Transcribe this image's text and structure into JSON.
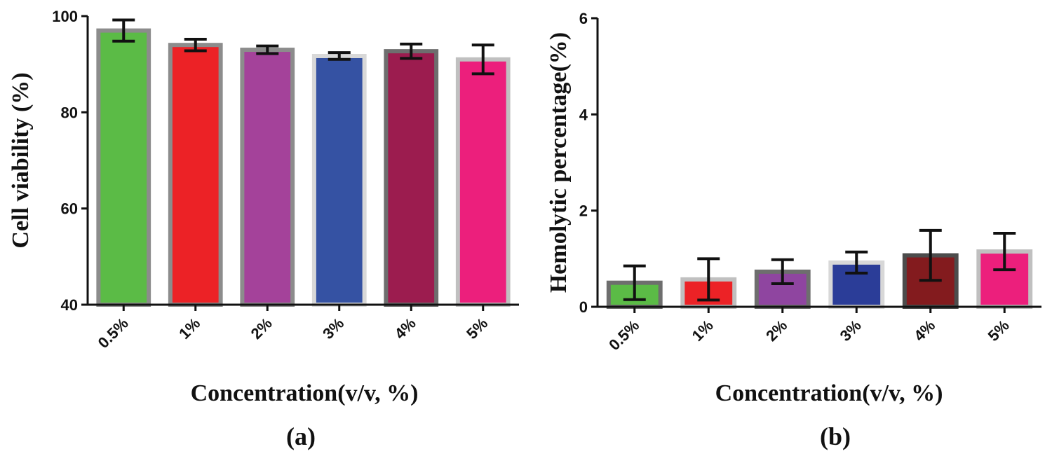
{
  "chart_data": [
    {
      "panel": "(a)",
      "type": "bar",
      "categories": [
        "0.5%",
        "1%",
        "2%",
        "3%",
        "4%",
        "5%"
      ],
      "values": [
        97,
        94,
        93,
        91.7,
        92.7,
        91
      ],
      "errors": [
        2.2,
        1.2,
        0.8,
        0.7,
        1.5,
        3
      ],
      "colors": [
        "#5bbb46",
        "#ec2226",
        "#a4429a",
        "#3552a3",
        "#9c1c4f",
        "#ec1f7c"
      ],
      "edge_colors": [
        "#8c8c8c",
        "#8c8c8c",
        "#8c8c8c",
        "#d8d8d8",
        "#6e6e6e",
        "#c0c0c0"
      ],
      "title": "",
      "xlabel": "Concentration(v/v, %)",
      "ylabel": "Cell viability (%)",
      "ylim": [
        40,
        100
      ],
      "yticks": [
        40,
        60,
        80,
        100
      ],
      "grid": false
    },
    {
      "panel": "(b)",
      "type": "bar",
      "categories": [
        "0.5%",
        "1%",
        "2%",
        "3%",
        "4%",
        "5%"
      ],
      "values": [
        0.5,
        0.57,
        0.73,
        0.92,
        1.07,
        1.15
      ],
      "errors": [
        0.35,
        0.43,
        0.25,
        0.22,
        0.52,
        0.38
      ],
      "colors": [
        "#5bbb46",
        "#ec2226",
        "#8f45a0",
        "#2b3d98",
        "#831b1e",
        "#ec1f7c"
      ],
      "edge_colors": [
        "#6e6e6e",
        "#c0c0c0",
        "#6e6e6e",
        "#d8d8d8",
        "#4c4c4c",
        "#c0c0c0"
      ],
      "title": "",
      "xlabel": "Concentration(v/v, %)",
      "ylabel": "Hemolytic percentage(%)",
      "ylim": [
        0,
        6
      ],
      "yticks": [
        0,
        2,
        4,
        6
      ],
      "grid": false
    }
  ]
}
